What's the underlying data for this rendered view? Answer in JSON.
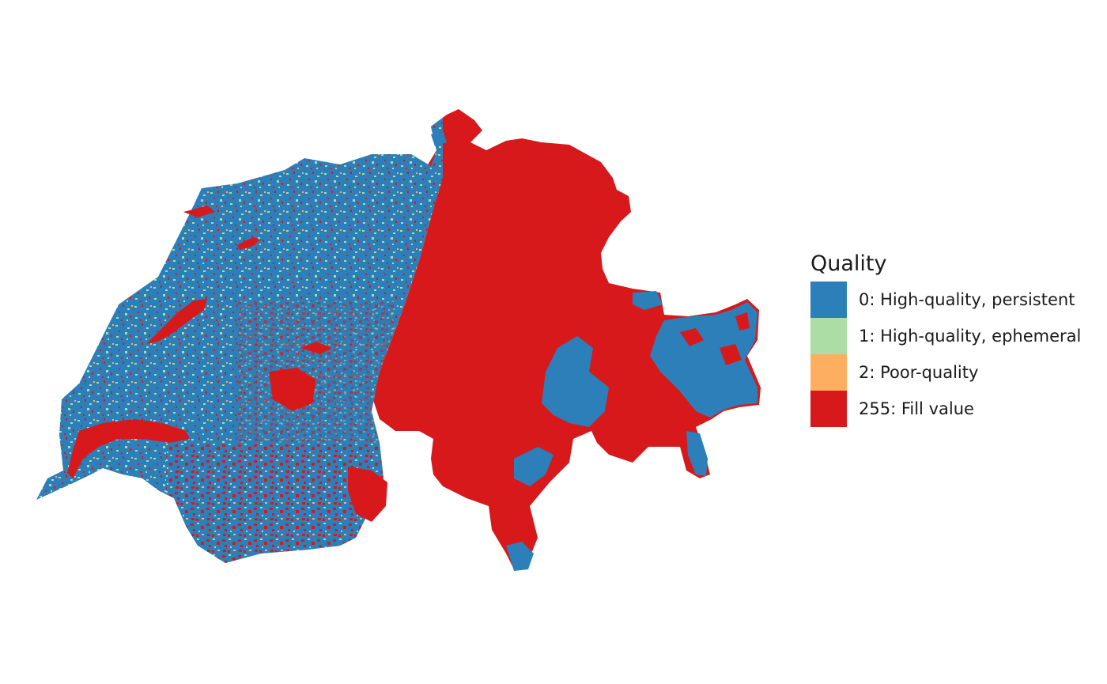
{
  "legend": {
    "title": "Quality",
    "items": [
      {
        "label": "0: High-quality, persistent",
        "color": "#2c7fb8"
      },
      {
        "label": "1: High-quality, ephemeral",
        "color": "#abdda4"
      },
      {
        "label": "2: Poor-quality",
        "color": "#fdae61"
      },
      {
        "label": "255: Fill value",
        "color": "#d7191c"
      }
    ]
  },
  "map": {
    "region": "Switzerland",
    "colors": {
      "persistent": "#2c7fb8",
      "ephemeral": "#abdda4",
      "poor": "#fdae61",
      "fill": "#d7191c"
    }
  }
}
